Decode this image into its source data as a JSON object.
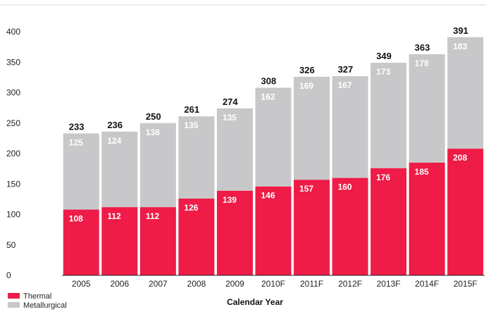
{
  "chart_data": {
    "type": "bar",
    "stacked": true,
    "categories": [
      "2005",
      "2006",
      "2007",
      "2008",
      "2009",
      "2010F",
      "2011F",
      "2012F",
      "2013F",
      "2014F",
      "2015F"
    ],
    "series": [
      {
        "name": "Thermal",
        "color": "#ee1c47",
        "values": [
          108,
          112,
          112,
          126,
          139,
          146,
          157,
          160,
          176,
          185,
          208
        ]
      },
      {
        "name": "Metallurgical",
        "color": "#c8c8ca",
        "values": [
          125,
          124,
          138,
          135,
          135,
          162,
          169,
          167,
          173,
          178,
          183
        ]
      }
    ],
    "totals": [
      233,
      236,
      250,
      261,
      274,
      308,
      326,
      327,
      349,
      363,
      391
    ],
    "yticks": [
      0,
      50,
      100,
      150,
      200,
      250,
      300,
      350,
      400
    ],
    "ylim": [
      0,
      400
    ],
    "xlabel": "Calendar Year",
    "ylabel": "",
    "title": "",
    "grid": false,
    "legend_position": "bottom-left"
  }
}
